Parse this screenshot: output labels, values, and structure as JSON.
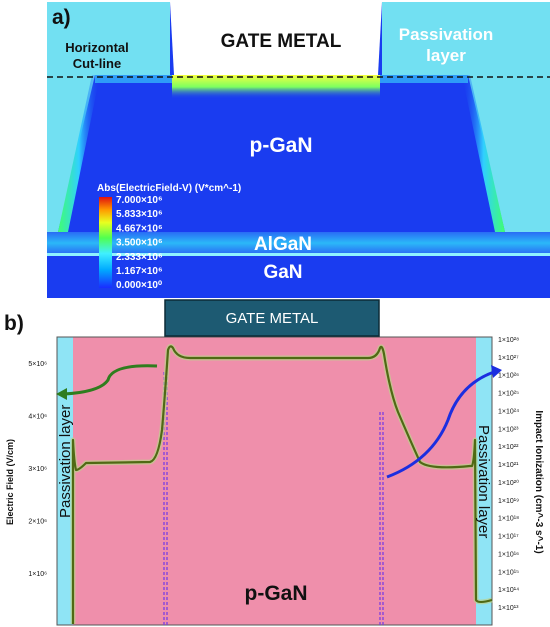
{
  "panel_a": {
    "tag": "a)",
    "gate_metal": "GATE METAL",
    "passivation_line1": "Passivation",
    "passivation_line2": "layer",
    "cutline_line1": "Horizontal",
    "cutline_line2": "Cut-line",
    "pgan": "p-GaN",
    "algan": "AlGaN",
    "gan": "GaN",
    "legend": {
      "title": "Abs(ElectricField-V) (V*cm^-1)",
      "ticks": [
        "7.000×10⁶",
        "5.833×10⁶",
        "4.667×10⁶",
        "3.500×10⁶",
        "2.333×10⁶",
        "1.167×10⁶",
        "0.000×10⁰"
      ]
    }
  },
  "panel_b": {
    "tag": "b)",
    "gate_metal": "GATE METAL",
    "pgan": "p-GaN",
    "passivation": "Passivation layer",
    "left_axis_label": "Electric Field (V/cm)",
    "right_axis_label": "Impact Ionization (cm^-3 s^-1)",
    "left_ticks": [
      "5×10⁶",
      "4×10⁶",
      "3×10⁶",
      "2×10⁶",
      "1×10⁶"
    ],
    "right_ticks": [
      "1×10²⁸",
      "1×10²⁷",
      "1×10²⁶",
      "1×10²⁵",
      "1×10²⁴",
      "1×10²³",
      "1×10²²",
      "1×10²¹",
      "1×10²⁰",
      "1×10¹⁹",
      "1×10¹⁸",
      "1×10¹⁷",
      "1×10¹⁶",
      "1×10¹⁵",
      "1×10¹⁴",
      "1×10¹³"
    ]
  },
  "colors": {
    "field_blue": "#1a3cf0",
    "passivation": "#72e0f2",
    "gate_box": "#1d5a72",
    "pgan_pink": "#ef8fab",
    "curve": "#4f6a14",
    "impact": "#7b3fe0",
    "arrow_green": "#2f7d1e",
    "arrow_blue": "#1b2ee0"
  }
}
